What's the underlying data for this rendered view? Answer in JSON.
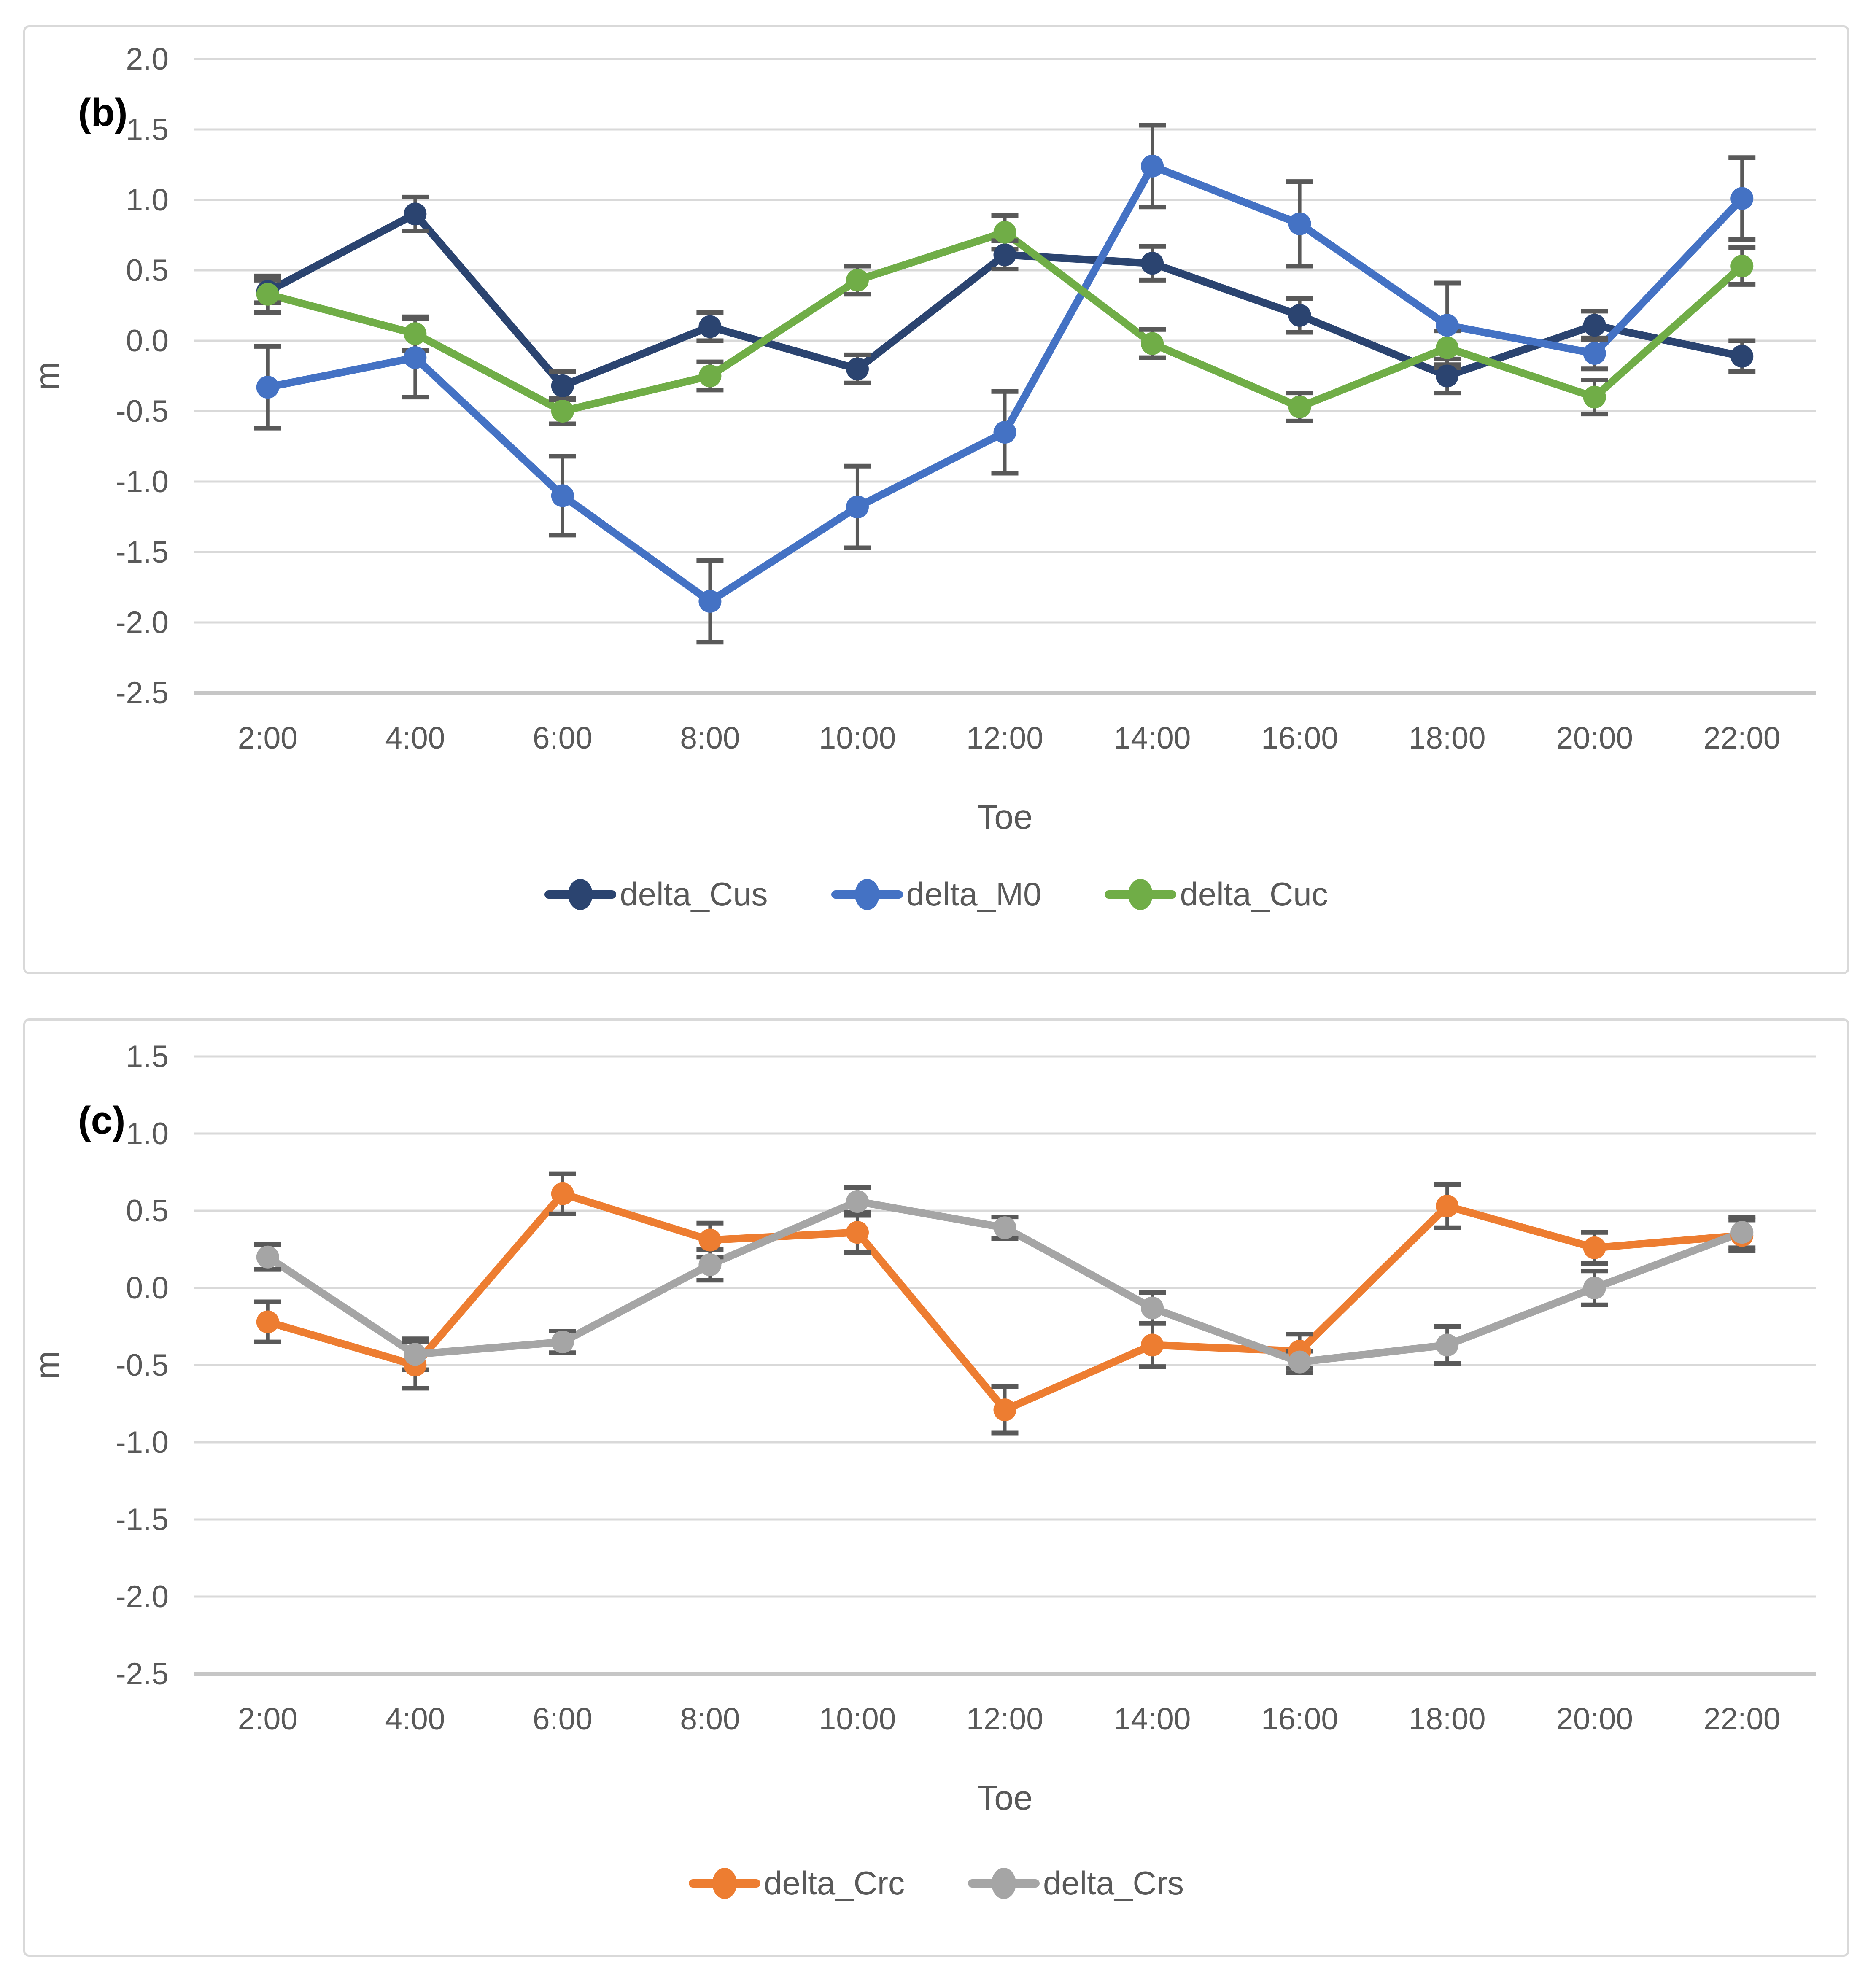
{
  "figure": {
    "background": "#ffffff",
    "panel_border_color": "#D9D9D9"
  },
  "style": {
    "gridline_color": "#D9D9D9",
    "axis_line_color": "#C6C6C6",
    "tick_text_color": "#595959",
    "error_bar_color": "#595959"
  },
  "chart_data": [
    {
      "type": "line",
      "panel_label": "(b)",
      "title": "",
      "xlabel": "Toe",
      "ylabel": "m",
      "ylim": [
        -2.5,
        2.0
      ],
      "yticks": [
        "2.0",
        "1.5",
        "1.0",
        "0.5",
        "0.0",
        "-0.5",
        "-1.0",
        "-1.5",
        "-2.0",
        "-2.5"
      ],
      "grid": true,
      "legend_position": "bottom",
      "categories": [
        "2:00",
        "4:00",
        "6:00",
        "8:00",
        "10:00",
        "12:00",
        "14:00",
        "16:00",
        "18:00",
        "20:00",
        "22:00"
      ],
      "series": [
        {
          "name": "delta_Cus",
          "color": "#2B4470",
          "values": [
            0.35,
            0.9,
            -0.32,
            0.1,
            -0.2,
            0.61,
            0.55,
            0.18,
            -0.25,
            0.11,
            -0.11
          ],
          "errors": [
            0.08,
            0.12,
            0.1,
            0.1,
            0.1,
            0.1,
            0.12,
            0.12,
            0.12,
            0.1,
            0.11
          ]
        },
        {
          "name": "delta_M0",
          "color": "#4472C4",
          "values": [
            -0.33,
            -0.12,
            -1.1,
            -1.85,
            -1.18,
            -0.65,
            1.24,
            0.83,
            0.11,
            -0.09,
            1.01
          ],
          "errors": [
            0.29,
            0.28,
            0.28,
            0.29,
            0.29,
            0.29,
            0.29,
            0.3,
            0.3,
            0.11,
            0.29
          ]
        },
        {
          "name": "delta_Cuc",
          "color": "#70AD47",
          "values": [
            0.33,
            0.05,
            -0.5,
            -0.25,
            0.43,
            0.77,
            -0.02,
            -0.47,
            -0.05,
            -0.4,
            0.53
          ],
          "errors": [
            0.13,
            0.12,
            0.09,
            0.1,
            0.1,
            0.12,
            0.1,
            0.1,
            0.12,
            0.12,
            0.13
          ]
        }
      ]
    },
    {
      "type": "line",
      "panel_label": "(c)",
      "title": "",
      "xlabel": "Toe",
      "ylabel": "m",
      "ylim": [
        -2.5,
        1.5
      ],
      "yticks": [
        "1.5",
        "1.0",
        "0.5",
        "0.0",
        "-0.5",
        "-1.0",
        "-1.5",
        "-2.0",
        "-2.5"
      ],
      "grid": true,
      "legend_position": "bottom",
      "categories": [
        "2:00",
        "4:00",
        "6:00",
        "8:00",
        "10:00",
        "12:00",
        "14:00",
        "16:00",
        "18:00",
        "20:00",
        "22:00"
      ],
      "series": [
        {
          "name": "delta_Crc",
          "color": "#ED7D31",
          "values": [
            -0.22,
            -0.5,
            0.61,
            0.31,
            0.36,
            -0.79,
            -0.37,
            -0.41,
            0.53,
            0.26,
            0.34
          ],
          "errors": [
            0.13,
            0.15,
            0.13,
            0.11,
            0.13,
            0.15,
            0.14,
            0.11,
            0.14,
            0.1,
            0.1
          ]
        },
        {
          "name": "delta_Crs",
          "color": "#A5A5A5",
          "values": [
            0.2,
            -0.43,
            -0.35,
            0.15,
            0.56,
            0.39,
            -0.13,
            -0.48,
            -0.37,
            0.0,
            0.36
          ],
          "errors": [
            0.08,
            0.1,
            0.07,
            0.1,
            0.09,
            0.07,
            0.1,
            0.07,
            0.12,
            0.11,
            0.1
          ]
        }
      ]
    }
  ]
}
